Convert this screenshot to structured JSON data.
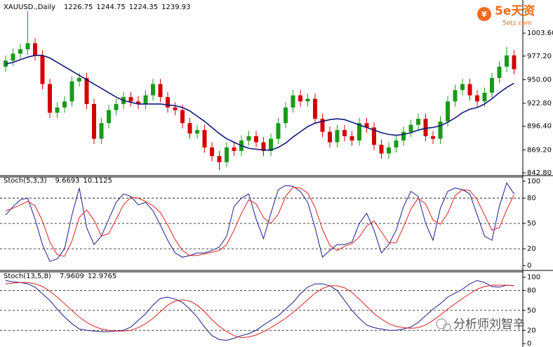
{
  "watermark": {
    "brand": "5e天资",
    "site": "5etz.com",
    "author": "分析师刘智辛"
  },
  "chart_data": [
    {
      "type": "candlestick",
      "title": "XAUUSD.,Daily",
      "header_values": [
        1226.75,
        1244.75,
        1224.35,
        1239.93
      ],
      "up_color": "#1a9a1a",
      "down_color": "#d40000",
      "open": [
        965,
        972,
        980,
        985,
        992,
        978,
        945,
        912,
        918,
        925,
        948,
        952,
        922,
        882,
        900,
        915,
        922,
        930,
        925,
        922,
        932,
        945,
        930,
        918,
        915,
        900,
        888,
        892,
        872,
        862,
        855,
        872,
        868,
        880,
        885,
        878,
        868,
        882,
        900,
        918,
        932,
        925,
        928,
        905,
        890,
        878,
        892,
        885,
        880,
        900,
        895,
        875,
        865,
        872,
        880,
        890,
        898,
        905,
        885,
        882,
        902,
        925,
        938,
        945,
        932,
        925,
        935,
        952,
        965,
        978
      ],
      "high": [
        978,
        986,
        991,
        1029,
        998,
        984,
        951,
        924,
        931,
        954,
        958,
        958,
        928,
        906,
        921,
        928,
        936,
        936,
        931,
        938,
        951,
        951,
        936,
        924,
        921,
        906,
        898,
        898,
        878,
        868,
        878,
        878,
        886,
        891,
        891,
        884,
        888,
        906,
        924,
        938,
        938,
        934,
        934,
        911,
        896,
        898,
        898,
        891,
        906,
        906,
        901,
        881,
        878,
        886,
        896,
        904,
        911,
        911,
        891,
        908,
        931,
        944,
        951,
        951,
        938,
        941,
        958,
        971,
        988,
        984
      ],
      "low": [
        959,
        966,
        974,
        979,
        972,
        939,
        906,
        906,
        912,
        919,
        942,
        916,
        876,
        876,
        894,
        909,
        916,
        919,
        916,
        916,
        926,
        924,
        912,
        909,
        894,
        882,
        882,
        866,
        856,
        846,
        849,
        862,
        862,
        874,
        872,
        862,
        862,
        876,
        894,
        912,
        919,
        919,
        899,
        884,
        872,
        872,
        879,
        874,
        874,
        889,
        869,
        859,
        859,
        866,
        874,
        884,
        892,
        879,
        876,
        876,
        896,
        919,
        932,
        926,
        919,
        919,
        929,
        946,
        959,
        956
      ],
      "close": [
        972,
        980,
        985,
        992,
        978,
        945,
        912,
        918,
        925,
        948,
        952,
        922,
        882,
        900,
        915,
        922,
        930,
        925,
        922,
        932,
        945,
        930,
        918,
        915,
        900,
        888,
        892,
        872,
        862,
        855,
        872,
        868,
        880,
        885,
        878,
        868,
        882,
        900,
        918,
        932,
        925,
        928,
        905,
        890,
        878,
        892,
        885,
        880,
        900,
        895,
        875,
        865,
        872,
        880,
        890,
        898,
        905,
        885,
        882,
        902,
        925,
        938,
        945,
        932,
        925,
        935,
        952,
        965,
        978,
        962
      ],
      "ma": {
        "color": "#10187a",
        "values": [
          968,
          970,
          973,
          976,
          978,
          978,
          975,
          970,
          965,
          960,
          955,
          950,
          945,
          940,
          935,
          930,
          926,
          924,
          922,
          922,
          922,
          922,
          921,
          920,
          918,
          914,
          908,
          902,
          895,
          888,
          882,
          878,
          874,
          871,
          870,
          869,
          869,
          872,
          877,
          884,
          890,
          896,
          900,
          902,
          904,
          905,
          904,
          901,
          898,
          895,
          892,
          889,
          887,
          886,
          887,
          889,
          892,
          894,
          895,
          897,
          901,
          906,
          912,
          916,
          918,
          922,
          928,
          935,
          941,
          946
        ]
      },
      "ylim": [
        841.2,
        1037.7
      ],
      "yticks": [
        {
          "value": 1003.6,
          "label": "1003.60"
        },
        {
          "value": 977.2,
          "label": "977.20"
        },
        {
          "value": 950,
          "label": "950.00"
        },
        {
          "value": 922.8,
          "label": "922.80"
        },
        {
          "value": 896.4,
          "label": "896.40"
        },
        {
          "value": 869.2,
          "label": "869.20"
        },
        {
          "value": 842.8,
          "label": "842.80"
        }
      ]
    },
    {
      "type": "line",
      "title": "Stoch(5,3,3)",
      "header_values": [
        9.6693,
        10.1125
      ],
      "series": [
        {
          "color": "#1c1c8c",
          "values": [
            60,
            70,
            78,
            80,
            55,
            25,
            5,
            8,
            20,
            60,
            92,
            45,
            25,
            35,
            55,
            75,
            85,
            82,
            72,
            75,
            65,
            48,
            30,
            15,
            10,
            12,
            15,
            15,
            18,
            22,
            35,
            70,
            80,
            85,
            55,
            32,
            62,
            90,
            95,
            94,
            88,
            75,
            45,
            10,
            18,
            25,
            25,
            28,
            50,
            62,
            42,
            15,
            25,
            42,
            70,
            88,
            82,
            50,
            30,
            68,
            88,
            92,
            90,
            85,
            60,
            35,
            30,
            70,
            98,
            85
          ]
        },
        {
          "color": "#e02020",
          "values": [
            65,
            68,
            72,
            76,
            71,
            53,
            28,
            13,
            11,
            29,
            57,
            66,
            54,
            35,
            38,
            55,
            72,
            81,
            80,
            76,
            71,
            63,
            48,
            31,
            18,
            12,
            12,
            14,
            16,
            18,
            25,
            42,
            62,
            78,
            73,
            57,
            50,
            61,
            82,
            93,
            92,
            86,
            69,
            43,
            24,
            18,
            23,
            26,
            34,
            47,
            53,
            40,
            27,
            27,
            46,
            67,
            80,
            73,
            54,
            49,
            62,
            83,
            90,
            89,
            78,
            60,
            42,
            45,
            66,
            84
          ]
        }
      ],
      "levels": [
        80,
        50,
        20
      ],
      "ylim": [
        -4,
        105
      ],
      "yticks": [
        100,
        80,
        50,
        20,
        0
      ]
    },
    {
      "type": "line",
      "title": "Stoch(13,5,8)",
      "header_values": [
        7.9609,
        12.9765
      ],
      "series": [
        {
          "color": "#1c1c8c",
          "values": [
            95,
            93,
            92,
            90,
            85,
            75,
            65,
            52,
            40,
            30,
            22,
            20,
            19,
            18,
            18,
            19,
            20,
            25,
            35,
            45,
            58,
            68,
            70,
            67,
            62,
            52,
            40,
            25,
            12,
            6,
            5,
            8,
            12,
            15,
            20,
            28,
            35,
            42,
            52,
            62,
            75,
            85,
            90,
            90,
            87,
            80,
            65,
            50,
            38,
            28,
            24,
            22,
            20,
            20,
            22,
            25,
            32,
            42,
            52,
            60,
            70,
            76,
            82,
            90,
            95,
            92,
            86,
            85,
            88,
            87
          ]
        },
        {
          "color": "#e02020",
          "values": [
            90,
            91,
            92,
            92,
            90,
            86,
            79,
            70,
            60,
            50,
            40,
            32,
            26,
            22,
            20,
            19,
            19,
            20,
            24,
            30,
            38,
            48,
            58,
            64,
            66,
            64,
            58,
            48,
            36,
            26,
            18,
            12,
            9,
            10,
            13,
            18,
            24,
            31,
            38,
            47,
            56,
            66,
            76,
            83,
            87,
            87,
            84,
            77,
            67,
            56,
            45,
            37,
            30,
            26,
            24,
            23,
            24,
            28,
            35,
            43,
            52,
            60,
            68,
            75,
            82,
            86,
            88,
            88,
            88,
            87
          ]
        }
      ],
      "levels": [
        80,
        50,
        20
      ],
      "ylim": [
        -3,
        107
      ],
      "yticks": [
        100,
        80,
        50,
        20,
        0
      ]
    }
  ]
}
